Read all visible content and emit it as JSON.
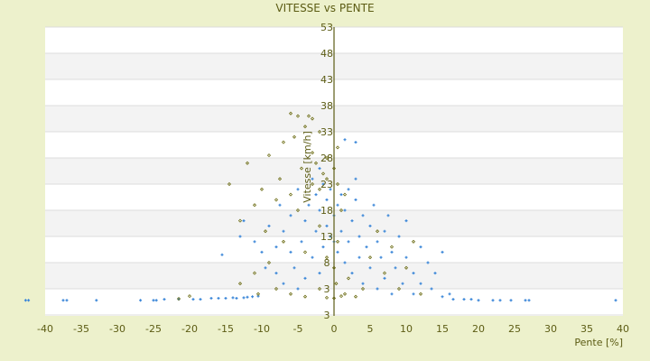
{
  "chart_data": {
    "type": "scatter",
    "title": "VITESSE vs PENTE",
    "xlabel": "Pente [%]",
    "ylabel": "Vitesse [km/h]",
    "xlim": [
      -40,
      40
    ],
    "ylim": [
      -2,
      53
    ],
    "x_ticks": [
      "-40",
      "-35",
      "-30",
      "-25",
      "-20",
      "-15",
      "-10",
      "-5",
      "0",
      "5",
      "10",
      "15",
      "20",
      "25",
      "30",
      "35",
      "40"
    ],
    "y_ticks": [
      "53",
      "48",
      "43",
      "38",
      "33",
      "28",
      "23",
      "18",
      "13",
      "8",
      "3",
      "3"
    ],
    "grid": true,
    "legend": "none",
    "colors": {
      "series1": "#3a86d8",
      "series2": "#6b6b12",
      "background": "#edf1cc",
      "band": "#f3f3f3",
      "axis": "#5c5c14"
    },
    "series": [
      {
        "points": [
          [
            -42.7,
            0.8
          ],
          [
            -42.3,
            0.8
          ],
          [
            -37.5,
            0.8
          ],
          [
            -37,
            0.8
          ],
          [
            -32.9,
            0.8
          ],
          [
            -26.8,
            0.8
          ],
          [
            -25,
            0.8
          ],
          [
            -24.6,
            0.8
          ],
          [
            -23.5,
            1
          ],
          [
            -21.5,
            1
          ],
          [
            -19.5,
            1
          ],
          [
            -18.5,
            1
          ],
          [
            -17,
            1.2
          ],
          [
            -16,
            1.2
          ],
          [
            -15,
            1.2
          ],
          [
            -14,
            1.3
          ],
          [
            -13.5,
            1.2
          ],
          [
            -12.5,
            1.3
          ],
          [
            -12,
            1.4
          ],
          [
            -11.3,
            1.5
          ],
          [
            -10.5,
            1.6
          ],
          [
            -15.5,
            9.5
          ],
          [
            -12.5,
            16
          ],
          [
            -13,
            13
          ],
          [
            -11,
            12
          ],
          [
            -10,
            10
          ],
          [
            -9.5,
            7
          ],
          [
            -9,
            15
          ],
          [
            -8,
            11
          ],
          [
            -8,
            6
          ],
          [
            -7.5,
            19
          ],
          [
            -7,
            14
          ],
          [
            -7,
            4
          ],
          [
            -6,
            10
          ],
          [
            -6,
            17
          ],
          [
            -5.5,
            7
          ],
          [
            -5,
            22
          ],
          [
            -5,
            3
          ],
          [
            -4.5,
            12
          ],
          [
            -4,
            16
          ],
          [
            -4,
            5
          ],
          [
            -3.5,
            19
          ],
          [
            -3,
            9
          ],
          [
            -3,
            24
          ],
          [
            -2.5,
            14
          ],
          [
            -2.5,
            21
          ],
          [
            -2,
            6
          ],
          [
            -2,
            18
          ],
          [
            -1.5,
            11
          ],
          [
            -1.5,
            23
          ],
          [
            -1,
            15
          ],
          [
            -1,
            20
          ],
          [
            -0.5,
            13
          ],
          [
            -0.5,
            22
          ],
          [
            0,
            12
          ],
          [
            0,
            17
          ],
          [
            0.5,
            19
          ],
          [
            0.5,
            10
          ],
          [
            1,
            21
          ],
          [
            1,
            14
          ],
          [
            1.5,
            8
          ],
          [
            1.5,
            18
          ],
          [
            2,
            22
          ],
          [
            2,
            12
          ],
          [
            2.5,
            16
          ],
          [
            2.5,
            6
          ],
          [
            3,
            20
          ],
          [
            3,
            31
          ],
          [
            3.5,
            13
          ],
          [
            3.5,
            9
          ],
          [
            4,
            17
          ],
          [
            4,
            4
          ],
          [
            4.5,
            11
          ],
          [
            5,
            15
          ],
          [
            5,
            7
          ],
          [
            5.5,
            19
          ],
          [
            6,
            12
          ],
          [
            6,
            3
          ],
          [
            6.5,
            9
          ],
          [
            7,
            14
          ],
          [
            7,
            5
          ],
          [
            7.5,
            17
          ],
          [
            8,
            10
          ],
          [
            8,
            2
          ],
          [
            8.5,
            7
          ],
          [
            9,
            13
          ],
          [
            9.5,
            4
          ],
          [
            10,
            9
          ],
          [
            10,
            16
          ],
          [
            11,
            6
          ],
          [
            11,
            2
          ],
          [
            12,
            11
          ],
          [
            12,
            4
          ],
          [
            13,
            8
          ],
          [
            13.5,
            3
          ],
          [
            14,
            6
          ],
          [
            15,
            1.5
          ],
          [
            15,
            10
          ],
          [
            16,
            2
          ],
          [
            16.5,
            1
          ],
          [
            18,
            1
          ],
          [
            19,
            1
          ],
          [
            20,
            0.8
          ],
          [
            22,
            0.8
          ],
          [
            23,
            0.8
          ],
          [
            24.5,
            0.8
          ],
          [
            26.5,
            0.8
          ],
          [
            27,
            0.8
          ],
          [
            39,
            0.8
          ],
          [
            1.5,
            31.5
          ],
          [
            3,
            24
          ],
          [
            -2,
            26
          ]
        ]
      },
      {
        "points": [
          [
            -6,
            36.5
          ],
          [
            -5,
            36
          ],
          [
            -3.5,
            36
          ],
          [
            -3,
            35.5
          ],
          [
            -4,
            34
          ],
          [
            -2,
            33
          ],
          [
            -5.5,
            32
          ],
          [
            -7,
            31
          ],
          [
            0.5,
            30
          ],
          [
            -3,
            29
          ],
          [
            -1,
            28
          ],
          [
            -9,
            28.5
          ],
          [
            -12,
            27
          ],
          [
            -2.5,
            27
          ],
          [
            0,
            26
          ],
          [
            -4.5,
            26
          ],
          [
            -1.5,
            25
          ],
          [
            -7.5,
            24
          ],
          [
            -10,
            22
          ],
          [
            -14.5,
            23
          ],
          [
            -3,
            23
          ],
          [
            -6,
            21
          ],
          [
            -8,
            20
          ],
          [
            -11,
            19
          ],
          [
            -5,
            18
          ],
          [
            -2,
            22
          ],
          [
            -1,
            24
          ],
          [
            0.5,
            23
          ],
          [
            1.5,
            21
          ],
          [
            -13,
            16
          ],
          [
            -9.5,
            14
          ],
          [
            -7,
            12
          ],
          [
            -4,
            10
          ],
          [
            -2,
            15
          ],
          [
            -1,
            9
          ],
          [
            0,
            7
          ],
          [
            0.3,
            4
          ],
          [
            0.5,
            12
          ],
          [
            1,
            18
          ],
          [
            1.5,
            2
          ],
          [
            2,
            5
          ],
          [
            3,
            1.5
          ],
          [
            4,
            3
          ],
          [
            5,
            9
          ],
          [
            6,
            14
          ],
          [
            7,
            6
          ],
          [
            8,
            11
          ],
          [
            9,
            3
          ],
          [
            10,
            7
          ],
          [
            11,
            12
          ],
          [
            12,
            2
          ],
          [
            -10.5,
            2
          ],
          [
            -8,
            3
          ],
          [
            -6,
            2
          ],
          [
            -4,
            1.5
          ],
          [
            -2,
            3
          ],
          [
            -1,
            1.3
          ],
          [
            0,
            1.2
          ],
          [
            1,
            1.6
          ],
          [
            -20,
            1.6
          ],
          [
            -21.5,
            1.1
          ],
          [
            -13,
            4
          ],
          [
            -11,
            6
          ],
          [
            -9,
            8
          ]
        ]
      }
    ]
  }
}
